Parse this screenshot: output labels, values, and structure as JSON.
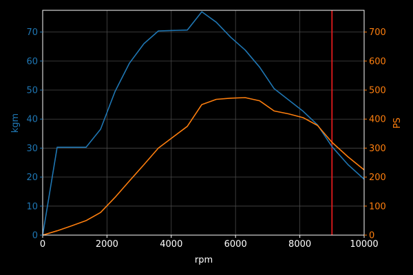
{
  "chart_data": {
    "type": "line",
    "xlabel": "rpm",
    "ylabel_left": "kgm",
    "ylabel_right": "PS",
    "xlim": [
      0,
      10000
    ],
    "ylim_left": [
      0,
      77.5
    ],
    "ylim_right": [
      0,
      775
    ],
    "x_ticks": [
      0,
      2000,
      4000,
      6000,
      8000,
      10000
    ],
    "y_left_ticks": [
      0,
      10,
      20,
      30,
      40,
      50,
      60,
      70
    ],
    "y_right_ticks": [
      0,
      100,
      200,
      300,
      400,
      500,
      600,
      700
    ],
    "grid": true,
    "series": [
      {
        "axis": "left",
        "color": "#1f77b4",
        "x": [
          0,
          450,
          1350,
          1800,
          2250,
          2700,
          3150,
          3600,
          4500,
          4950,
          5400,
          5850,
          6300,
          6750,
          7200,
          7650,
          8100,
          8550,
          9000,
          9500,
          10000
        ],
        "y": [
          0,
          30.3,
          30.3,
          36.5,
          49.5,
          59.3,
          66,
          70.4,
          70.7,
          77,
          73.4,
          68.2,
          63.8,
          57.9,
          50.5,
          46.6,
          42.7,
          38,
          30.5,
          24.3,
          19.3
        ]
      },
      {
        "axis": "right",
        "color": "#ff7f0e",
        "x": [
          0,
          450,
          900,
          1350,
          1800,
          2250,
          2700,
          3150,
          3600,
          4500,
          4950,
          5400,
          5850,
          6300,
          6750,
          7200,
          7650,
          8100,
          8550,
          9000,
          9500,
          10000
        ],
        "y": [
          0,
          15,
          32,
          50,
          78,
          130,
          187,
          243,
          300,
          375,
          450,
          468,
          472,
          474,
          463,
          428,
          418,
          405,
          378,
          320,
          270,
          225
        ]
      }
    ],
    "vline": {
      "x": 9000,
      "color": "#e31a1c"
    }
  }
}
